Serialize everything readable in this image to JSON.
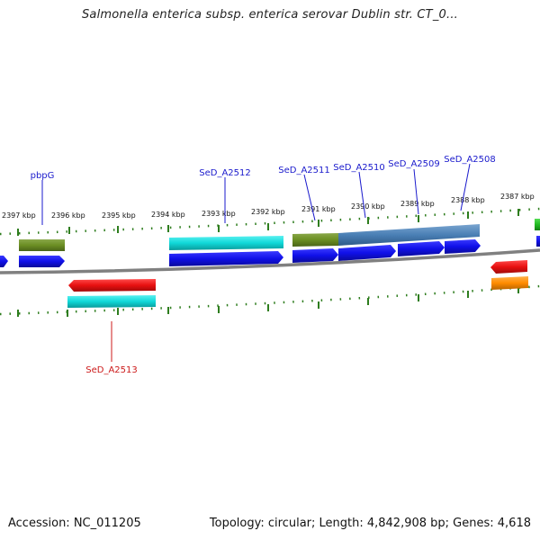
{
  "title": "Salmonella enterica subsp. enterica serovar Dublin str. CT_0...",
  "footer": {
    "accession": "Accession: NC_011205",
    "summary": "Topology: circular; Length: 4,842,908 bp; Genes: 4,618"
  },
  "colors": {
    "backbone": "#808080",
    "tick": "#2e7d1e",
    "label_forward": "#1a1acc",
    "label_reverse": "#cc1a1a",
    "blue": "#1010e8",
    "red": "#e81010",
    "cyan": "#10d8d8",
    "olive": "#6b8e23",
    "steel": "#4a7fb5",
    "green": "#22bb22",
    "orange": "#ff8c00"
  },
  "ruler": {
    "labels": [
      "2397 kbp",
      "2396 kbp",
      "2395 kbp",
      "2394 kbp",
      "2393 kbp",
      "2392 kbp",
      "2391 kbp",
      "2390 kbp",
      "2389 kbp",
      "2388 kbp",
      "2387 kbp"
    ]
  },
  "gene_labels": [
    {
      "text": "pbpG",
      "strand": "forward"
    },
    {
      "text": "SeD_A2512",
      "strand": "forward"
    },
    {
      "text": "SeD_A2511",
      "strand": "forward"
    },
    {
      "text": "SeD_A2510",
      "strand": "forward"
    },
    {
      "text": "SeD_A2509",
      "strand": "forward"
    },
    {
      "text": "SeD_A2508",
      "strand": "forward"
    },
    {
      "text": "SeD_A2513",
      "strand": "reverse"
    }
  ]
}
